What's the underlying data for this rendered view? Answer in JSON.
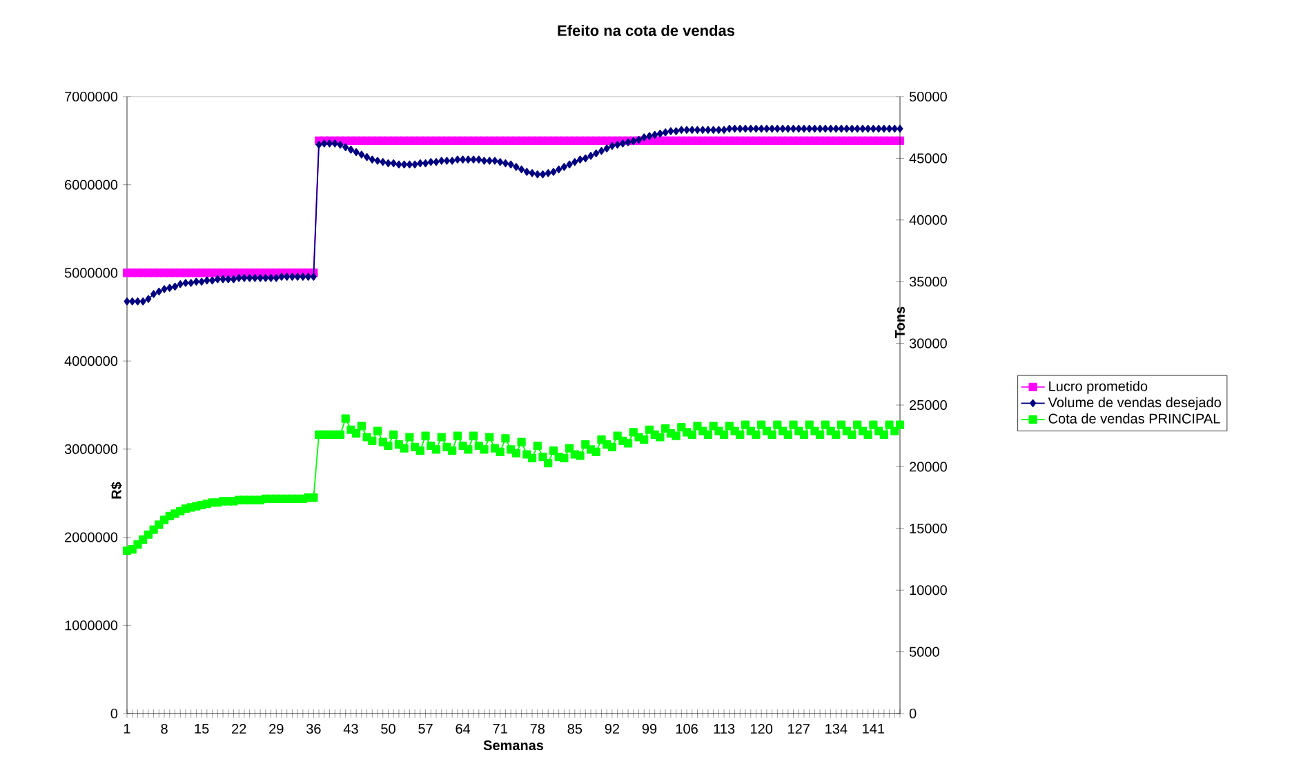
{
  "chart_data": {
    "type": "line",
    "title": "Efeito na cota de vendas",
    "xlabel": "Semanas",
    "ylabel": "R$",
    "y2label": "Tons",
    "categories": [
      "1",
      null,
      null,
      null,
      null,
      null,
      null,
      "8",
      null,
      null,
      null,
      null,
      null,
      null,
      "15",
      null,
      null,
      null,
      null,
      null,
      null,
      "22",
      null,
      null,
      null,
      null,
      null,
      null,
      "29",
      null,
      null,
      null,
      null,
      null,
      null,
      "36",
      null,
      null,
      null,
      null,
      null,
      null,
      "43",
      null,
      null,
      null,
      null,
      null,
      null,
      "50",
      null,
      null,
      null,
      null,
      null,
      null,
      "57",
      null,
      null,
      null,
      null,
      null,
      null,
      "64",
      null,
      null,
      null,
      null,
      null,
      null,
      "71",
      null,
      null,
      null,
      null,
      null,
      null,
      "78",
      null,
      null,
      null,
      null,
      null,
      null,
      "85",
      null,
      null,
      null,
      null,
      null,
      null,
      "92",
      null,
      null,
      null,
      null,
      null,
      null,
      "99",
      null,
      null,
      null,
      null,
      null,
      null,
      "106",
      null,
      null,
      null,
      null,
      null,
      null,
      "113",
      null,
      null,
      null,
      null,
      null,
      null,
      "120",
      null,
      null,
      null,
      null,
      null,
      null,
      "127",
      null,
      null,
      null,
      null,
      null,
      null,
      "134",
      null,
      null,
      null,
      null,
      null,
      null,
      "141",
      null,
      null,
      null,
      null,
      null
    ],
    "ylim": [
      0,
      7000000
    ],
    "yticks": [
      0,
      1000000,
      2000000,
      3000000,
      4000000,
      5000000,
      6000000,
      7000000
    ],
    "y2lim": [
      0,
      50000
    ],
    "y2ticks": [
      0,
      5000,
      10000,
      15000,
      20000,
      25000,
      30000,
      35000,
      40000,
      45000,
      50000
    ],
    "legend": "right",
    "grid": false,
    "marker": "square",
    "line_style": "solid",
    "series": [
      {
        "name": "Lucro prometido",
        "color": "#ff00ff",
        "values": [
          5000000,
          5000000,
          5000000,
          5000000,
          5000000,
          5000000,
          5000000,
          5000000,
          5000000,
          5000000,
          5000000,
          5000000,
          5000000,
          5000000,
          5000000,
          5000000,
          5000000,
          5000000,
          5000000,
          5000000,
          5000000,
          5000000,
          5000000,
          5000000,
          5000000,
          5000000,
          5000000,
          5000000,
          5000000,
          5000000,
          5000000,
          5000000,
          5000000,
          5000000,
          5000000,
          5000000,
          6500000,
          6500000,
          6500000,
          6500000,
          6500000,
          6500000,
          6500000,
          6500000,
          6500000,
          6500000,
          6500000,
          6500000,
          6500000,
          6500000,
          6500000,
          6500000,
          6500000,
          6500000,
          6500000,
          6500000,
          6500000,
          6500000,
          6500000,
          6500000,
          6500000,
          6500000,
          6500000,
          6500000,
          6500000,
          6500000,
          6500000,
          6500000,
          6500000,
          6500000,
          6500000,
          6500000,
          6500000,
          6500000,
          6500000,
          6500000,
          6500000,
          6500000,
          6500000,
          6500000,
          6500000,
          6500000,
          6500000,
          6500000,
          6500000,
          6500000,
          6500000,
          6500000,
          6500000,
          6500000,
          6500000,
          6500000,
          6500000,
          6500000,
          6500000,
          6500000,
          6500000,
          6500000,
          6500000,
          6500000,
          6500000,
          6500000,
          6500000,
          6500000,
          6500000,
          6500000,
          6500000,
          6500000,
          6500000,
          6500000,
          6500000,
          6500000,
          6500000,
          6500000,
          6500000,
          6500000,
          6500000,
          6500000,
          6500000,
          6500000,
          6500000,
          6500000,
          6500000,
          6500000,
          6500000,
          6500000,
          6500000,
          6500000,
          6500000,
          6500000,
          6500000,
          6500000,
          6500000,
          6500000,
          6500000,
          6500000,
          6500000,
          6500000,
          6500000,
          6500000,
          6500000,
          6500000,
          6500000,
          6500000,
          6500000,
          6500000
        ]
      },
      {
        "name": "Volume de vendas desejado",
        "color": "#000080",
        "axis": "y2",
        "marker": "diamond",
        "values": [
          33400,
          33400,
          33400,
          33400,
          33600,
          34000,
          34200,
          34400,
          34500,
          34600,
          34800,
          34900,
          34900,
          35000,
          35000,
          35100,
          35100,
          35200,
          35200,
          35200,
          35200,
          35300,
          35300,
          35300,
          35300,
          35300,
          35300,
          35300,
          35300,
          35400,
          35400,
          35400,
          35400,
          35400,
          35400,
          35400,
          46100,
          46200,
          46200,
          46200,
          46100,
          45900,
          45700,
          45500,
          45300,
          45100,
          44900,
          44800,
          44700,
          44600,
          44600,
          44500,
          44500,
          44500,
          44500,
          44600,
          44600,
          44700,
          44700,
          44800,
          44800,
          44800,
          44900,
          44900,
          44900,
          44900,
          44900,
          44800,
          44800,
          44800,
          44700,
          44600,
          44500,
          44300,
          44100,
          43900,
          43800,
          43700,
          43700,
          43800,
          43900,
          44100,
          44300,
          44500,
          44700,
          44900,
          45000,
          45200,
          45400,
          45600,
          45800,
          46000,
          46100,
          46200,
          46300,
          46400,
          46500,
          46700,
          46800,
          46900,
          47000,
          47100,
          47200,
          47200,
          47300,
          47300,
          47300,
          47300,
          47300,
          47300,
          47300,
          47300,
          47300,
          47400,
          47400,
          47400,
          47400,
          47400,
          47400,
          47400,
          47400,
          47400,
          47400,
          47400,
          47400,
          47400,
          47400,
          47400,
          47400,
          47400,
          47400,
          47400,
          47400,
          47400,
          47400,
          47400,
          47400,
          47400,
          47400,
          47400,
          47400,
          47400,
          47400,
          47400,
          47400,
          47400
        ]
      },
      {
        "name": "Cota de vendas PRINCIPAL",
        "color": "#00ff00",
        "axis": "y2",
        "values": [
          13200,
          13300,
          13700,
          14100,
          14500,
          14900,
          15300,
          15700,
          16000,
          16200,
          16400,
          16600,
          16700,
          16800,
          16900,
          17000,
          17100,
          17100,
          17200,
          17200,
          17200,
          17300,
          17300,
          17300,
          17300,
          17300,
          17400,
          17400,
          17400,
          17400,
          17400,
          17400,
          17400,
          17400,
          17500,
          17500,
          22600,
          22600,
          22600,
          22600,
          22600,
          23900,
          23000,
          22700,
          23300,
          22400,
          22100,
          22900,
          22000,
          21700,
          22600,
          21800,
          21500,
          22400,
          21600,
          21300,
          22500,
          21700,
          21400,
          22400,
          21600,
          21300,
          22500,
          21700,
          21400,
          22500,
          21700,
          21400,
          22400,
          21500,
          21200,
          22300,
          21400,
          21100,
          22000,
          21000,
          20700,
          21700,
          20800,
          20300,
          21300,
          20800,
          20700,
          21500,
          21000,
          20900,
          21800,
          21400,
          21200,
          22200,
          21800,
          21600,
          22500,
          22100,
          21900,
          22800,
          22400,
          22200,
          23000,
          22600,
          22400,
          23100,
          22700,
          22500,
          23200,
          22800,
          22600,
          23300,
          22900,
          22600,
          23300,
          22900,
          22600,
          23300,
          22900,
          22600,
          23400,
          22900,
          22600,
          23400,
          22900,
          22600,
          23400,
          22900,
          22600,
          23400,
          22900,
          22600,
          23400,
          22900,
          22600,
          23400,
          22900,
          22600,
          23400,
          22900,
          22600,
          23400,
          22900,
          22600,
          23400,
          22900,
          22600,
          23400,
          22900,
          23400
        ]
      }
    ]
  }
}
